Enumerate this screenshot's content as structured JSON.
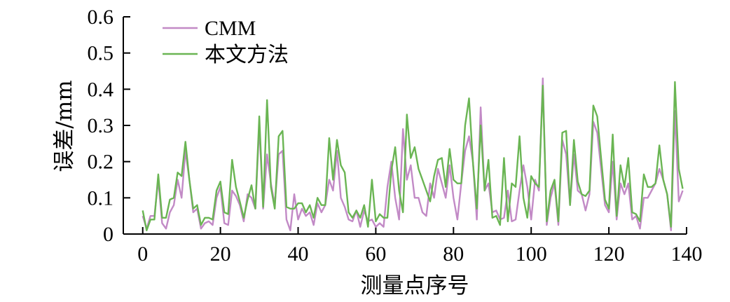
{
  "chart_data": {
    "type": "line",
    "xlabel": "测量点序号",
    "ylabel": "误差/mm",
    "xlim": [
      -5,
      140
    ],
    "ylim": [
      0,
      0.6
    ],
    "xticks": [
      0,
      20,
      40,
      60,
      80,
      100,
      120,
      140
    ],
    "yticks": [
      0,
      0.1,
      0.2,
      0.3,
      0.4,
      0.5,
      0.6
    ],
    "xtick_labels": [
      "0",
      "20",
      "40",
      "60",
      "80",
      "100",
      "120",
      "140"
    ],
    "ytick_labels": [
      "0",
      "0.1",
      "0.2",
      "0.3",
      "0.4",
      "0.5",
      "0.6"
    ],
    "grid": false,
    "legend": "top-left",
    "x": [
      0,
      1,
      2,
      3,
      4,
      5,
      6,
      7,
      8,
      9,
      10,
      11,
      12,
      13,
      14,
      15,
      16,
      17,
      18,
      19,
      20,
      21,
      22,
      23,
      24,
      25,
      26,
      27,
      28,
      29,
      30,
      31,
      32,
      33,
      34,
      35,
      36,
      37,
      38,
      39,
      40,
      41,
      42,
      43,
      44,
      45,
      46,
      47,
      48,
      49,
      50,
      51,
      52,
      53,
      54,
      55,
      56,
      57,
      58,
      59,
      60,
      61,
      62,
      63,
      64,
      65,
      66,
      67,
      68,
      69,
      70,
      71,
      72,
      73,
      74,
      75,
      76,
      77,
      78,
      79,
      80,
      81,
      82,
      83,
      84,
      85,
      86,
      87,
      88,
      89,
      90,
      91,
      92,
      93,
      94,
      95,
      96,
      97,
      98,
      99,
      100,
      101,
      102,
      103,
      104,
      105,
      106,
      107,
      108,
      109,
      110,
      111,
      112,
      113,
      114,
      115,
      116,
      117,
      118,
      119,
      120,
      121,
      122,
      123,
      124,
      125,
      126,
      127,
      128,
      129,
      130,
      131,
      132,
      133,
      134,
      135,
      136,
      137,
      138,
      139
    ],
    "series": [
      {
        "name": "CMM",
        "color": "#c28ac6",
        "values": [
          0.05,
          0.015,
          0.05,
          0.05,
          0.15,
          0.03,
          0.015,
          0.06,
          0.08,
          0.15,
          0.1,
          0.23,
          0.15,
          0.06,
          0.07,
          0.015,
          0.03,
          0.035,
          0.025,
          0.1,
          0.13,
          0.03,
          0.025,
          0.12,
          0.105,
          0.08,
          0.035,
          0.11,
          0.1,
          0.07,
          0.3,
          0.07,
          0.22,
          0.14,
          0.08,
          0.22,
          0.23,
          0.04,
          0.01,
          0.11,
          0.04,
          0.07,
          0.05,
          0.06,
          0.025,
          0.085,
          0.06,
          0.08,
          0.15,
          0.12,
          0.23,
          0.1,
          0.075,
          0.04,
          0.035,
          0.065,
          0.02,
          0.065,
          0.035,
          0.04,
          0.02,
          0.03,
          0.02,
          0.13,
          0.2,
          0.1,
          0.04,
          0.29,
          0.15,
          0.19,
          0.1,
          0.1,
          0.06,
          0.05,
          0.14,
          0.1,
          0.18,
          0.14,
          0.1,
          0.19,
          0.1,
          0.04,
          0.14,
          0.23,
          0.27,
          0.2,
          0.04,
          0.35,
          0.12,
          0.14,
          0.06,
          0.065,
          0.04,
          0.045,
          0.12,
          0.035,
          0.04,
          0.12,
          0.19,
          0.13,
          0.04,
          0.15,
          0.12,
          0.43,
          0.025,
          0.1,
          0.14,
          0.025,
          0.26,
          0.22,
          0.08,
          0.22,
          0.12,
          0.11,
          0.065,
          0.11,
          0.31,
          0.28,
          0.18,
          0.08,
          0.06,
          0.2,
          0.04,
          0.14,
          0.11,
          0.14,
          0.04,
          0.05,
          0.015,
          0.1,
          0.1,
          0.12,
          0.14,
          0.18,
          0.15,
          0.11,
          0.01,
          0.34,
          0.09,
          0.12
        ]
      },
      {
        "name": "本文方法",
        "color": "#6ab553",
        "values": [
          0.065,
          0.01,
          0.04,
          0.04,
          0.165,
          0.045,
          0.045,
          0.095,
          0.1,
          0.17,
          0.16,
          0.255,
          0.15,
          0.07,
          0.08,
          0.025,
          0.045,
          0.045,
          0.04,
          0.12,
          0.145,
          0.06,
          0.055,
          0.205,
          0.13,
          0.09,
          0.045,
          0.095,
          0.135,
          0.07,
          0.325,
          0.075,
          0.37,
          0.13,
          0.07,
          0.27,
          0.285,
          0.075,
          0.07,
          0.07,
          0.085,
          0.085,
          0.06,
          0.08,
          0.045,
          0.1,
          0.08,
          0.08,
          0.265,
          0.15,
          0.26,
          0.19,
          0.17,
          0.06,
          0.045,
          0.065,
          0.045,
          0.08,
          0.02,
          0.15,
          0.035,
          0.055,
          0.045,
          0.045,
          0.175,
          0.24,
          0.12,
          0.06,
          0.33,
          0.21,
          0.24,
          0.18,
          0.15,
          0.12,
          0.09,
          0.16,
          0.205,
          0.21,
          0.13,
          0.235,
          0.15,
          0.14,
          0.14,
          0.3,
          0.375,
          0.2,
          0.07,
          0.3,
          0.12,
          0.205,
          0.045,
          0.05,
          0.025,
          0.21,
          0.035,
          0.14,
          0.13,
          0.27,
          0.1,
          0.045,
          0.16,
          0.14,
          0.13,
          0.41,
          0.035,
          0.12,
          0.15,
          0.035,
          0.28,
          0.285,
          0.08,
          0.26,
          0.145,
          0.11,
          0.105,
          0.12,
          0.355,
          0.325,
          0.21,
          0.095,
          0.07,
          0.275,
          0.05,
          0.19,
          0.13,
          0.21,
          0.06,
          0.055,
          0.035,
          0.165,
          0.13,
          0.13,
          0.14,
          0.245,
          0.15,
          0.11,
          0.02,
          0.42,
          0.18,
          0.125
        ]
      }
    ]
  }
}
